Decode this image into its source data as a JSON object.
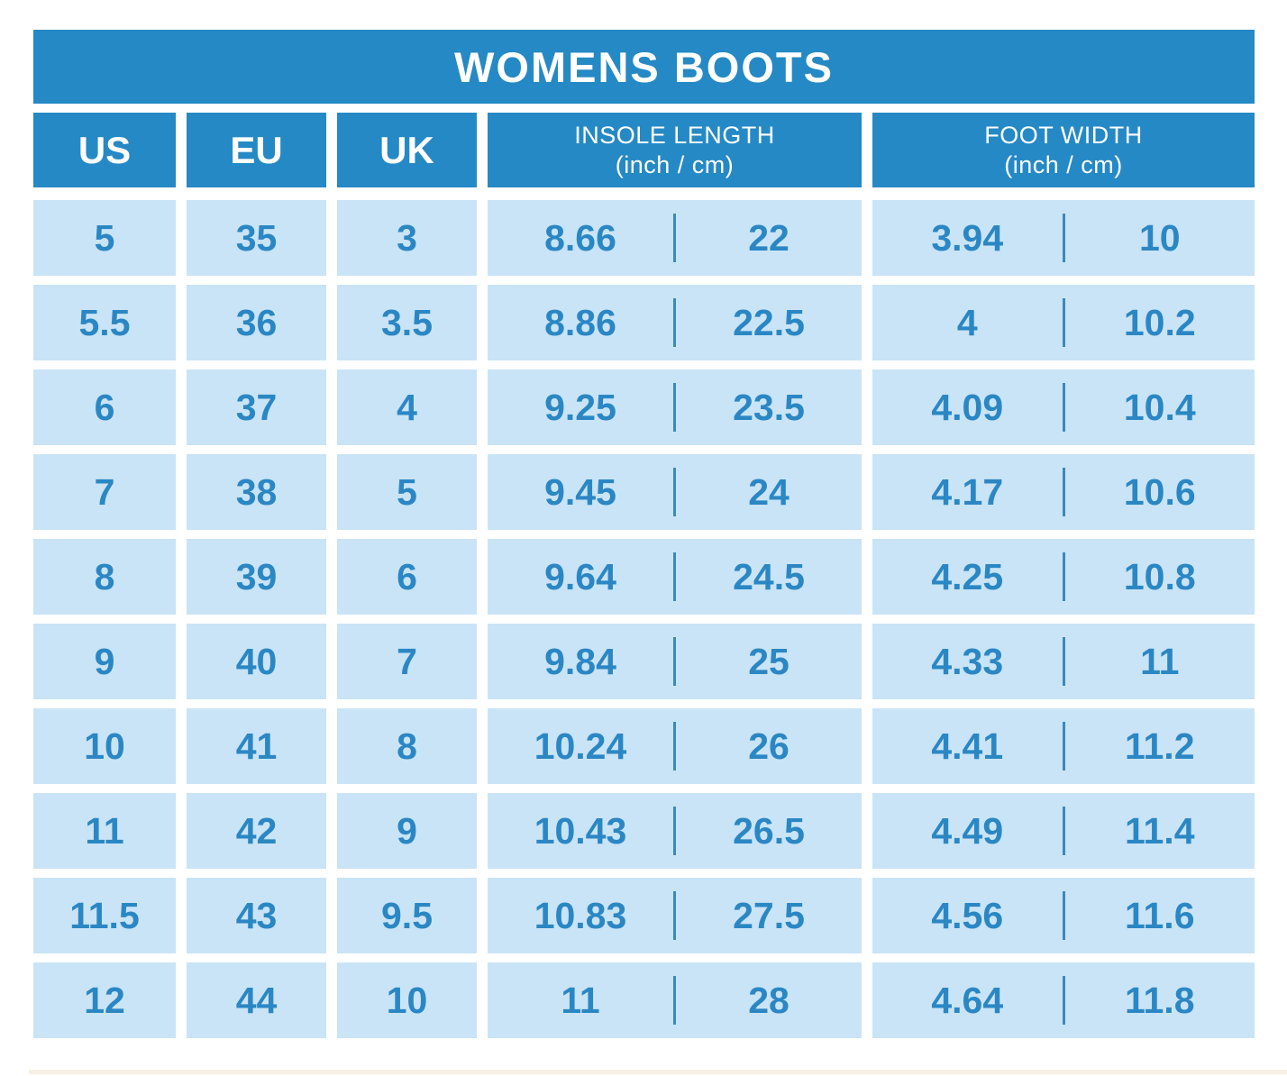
{
  "title": "WOMENS BOOTS",
  "colors": {
    "header_bg": "#2589c5",
    "header_text": "#ffffff",
    "cell_bg": "#c9e4f6",
    "cell_text": "#2b87c4",
    "divider": "#3c89ba"
  },
  "headers": {
    "us": "US",
    "eu": "EU",
    "uk": "UK",
    "insole_line1": "INSOLE LENGTH",
    "insole_line2": "(inch / cm)",
    "foot_line1": "FOOT WIDTH",
    "foot_line2": "(inch / cm)"
  },
  "rows": [
    {
      "us": "5",
      "eu": "35",
      "uk": "3",
      "insole_inch": "8.66",
      "insole_cm": "22",
      "foot_inch": "3.94",
      "foot_cm": "10"
    },
    {
      "us": "5.5",
      "eu": "36",
      "uk": "3.5",
      "insole_inch": "8.86",
      "insole_cm": "22.5",
      "foot_inch": "4",
      "foot_cm": "10.2"
    },
    {
      "us": "6",
      "eu": "37",
      "uk": "4",
      "insole_inch": "9.25",
      "insole_cm": "23.5",
      "foot_inch": "4.09",
      "foot_cm": "10.4"
    },
    {
      "us": "7",
      "eu": "38",
      "uk": "5",
      "insole_inch": "9.45",
      "insole_cm": "24",
      "foot_inch": "4.17",
      "foot_cm": "10.6"
    },
    {
      "us": "8",
      "eu": "39",
      "uk": "6",
      "insole_inch": "9.64",
      "insole_cm": "24.5",
      "foot_inch": "4.25",
      "foot_cm": "10.8"
    },
    {
      "us": "9",
      "eu": "40",
      "uk": "7",
      "insole_inch": "9.84",
      "insole_cm": "25",
      "foot_inch": "4.33",
      "foot_cm": "11"
    },
    {
      "us": "10",
      "eu": "41",
      "uk": "8",
      "insole_inch": "10.24",
      "insole_cm": "26",
      "foot_inch": "4.41",
      "foot_cm": "11.2"
    },
    {
      "us": "11",
      "eu": "42",
      "uk": "9",
      "insole_inch": "10.43",
      "insole_cm": "26.5",
      "foot_inch": "4.49",
      "foot_cm": "11.4"
    },
    {
      "us": "11.5",
      "eu": "43",
      "uk": "9.5",
      "insole_inch": "10.83",
      "insole_cm": "27.5",
      "foot_inch": "4.56",
      "foot_cm": "11.6"
    },
    {
      "us": "12",
      "eu": "44",
      "uk": "10",
      "insole_inch": "11",
      "insole_cm": "28",
      "foot_inch": "4.64",
      "foot_cm": "11.8"
    }
  ],
  "chart_data": {
    "type": "table",
    "title": "WOMENS BOOTS",
    "columns": [
      "US",
      "EU",
      "UK",
      "INSOLE LENGTH (inch / cm)",
      "FOOT WIDTH (inch / cm)"
    ],
    "rows": [
      [
        "5",
        "35",
        "3",
        "8.66 / 22",
        "3.94 / 10"
      ],
      [
        "5.5",
        "36",
        "3.5",
        "8.86 / 22.5",
        "4 / 10.2"
      ],
      [
        "6",
        "37",
        "4",
        "9.25 / 23.5",
        "4.09 / 10.4"
      ],
      [
        "7",
        "38",
        "5",
        "9.45 / 24",
        "4.17 / 10.6"
      ],
      [
        "8",
        "39",
        "6",
        "9.64 / 24.5",
        "4.25 / 10.8"
      ],
      [
        "9",
        "40",
        "7",
        "9.84 / 25",
        "4.33 / 11"
      ],
      [
        "10",
        "41",
        "8",
        "10.24 / 26",
        "4.41 / 11.2"
      ],
      [
        "11",
        "42",
        "9",
        "10.43 / 26.5",
        "4.49 / 11.4"
      ],
      [
        "11.5",
        "43",
        "9.5",
        "10.83 / 27.5",
        "4.56 / 11.6"
      ],
      [
        "12",
        "44",
        "10",
        "11 / 28",
        "4.64 / 11.8"
      ]
    ],
    "legend_position": "none",
    "grid": false
  }
}
